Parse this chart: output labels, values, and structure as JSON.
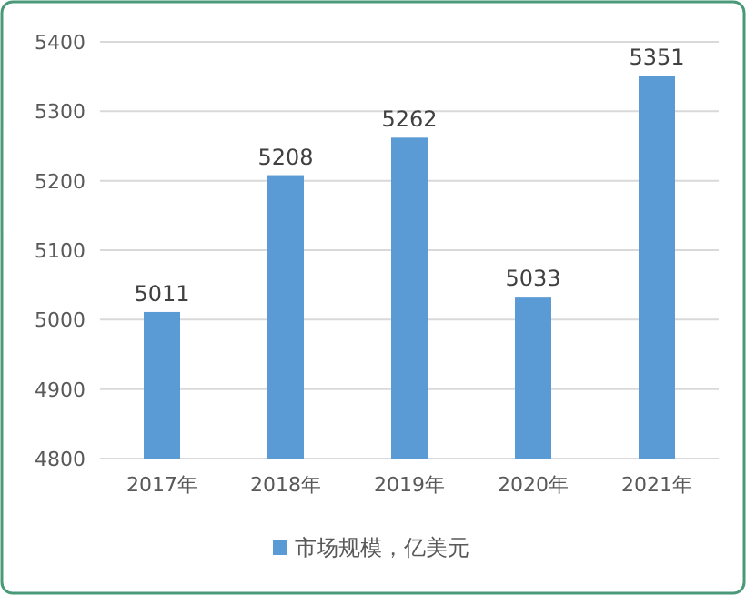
{
  "chart_data": {
    "type": "bar",
    "categories": [
      "2017年",
      "2018年",
      "2019年",
      "2020年",
      "2021年"
    ],
    "series": [
      {
        "name": "市场规模，亿美元",
        "color": "#5b9bd5",
        "values": [
          5011,
          5208,
          5262,
          5033,
          5351
        ]
      }
    ],
    "ylim": [
      4800,
      5400
    ],
    "yticks": [
      4800,
      4900,
      5000,
      5100,
      5200,
      5300,
      5400
    ],
    "grid": "y",
    "legend": "bottom",
    "data_labels": true
  }
}
